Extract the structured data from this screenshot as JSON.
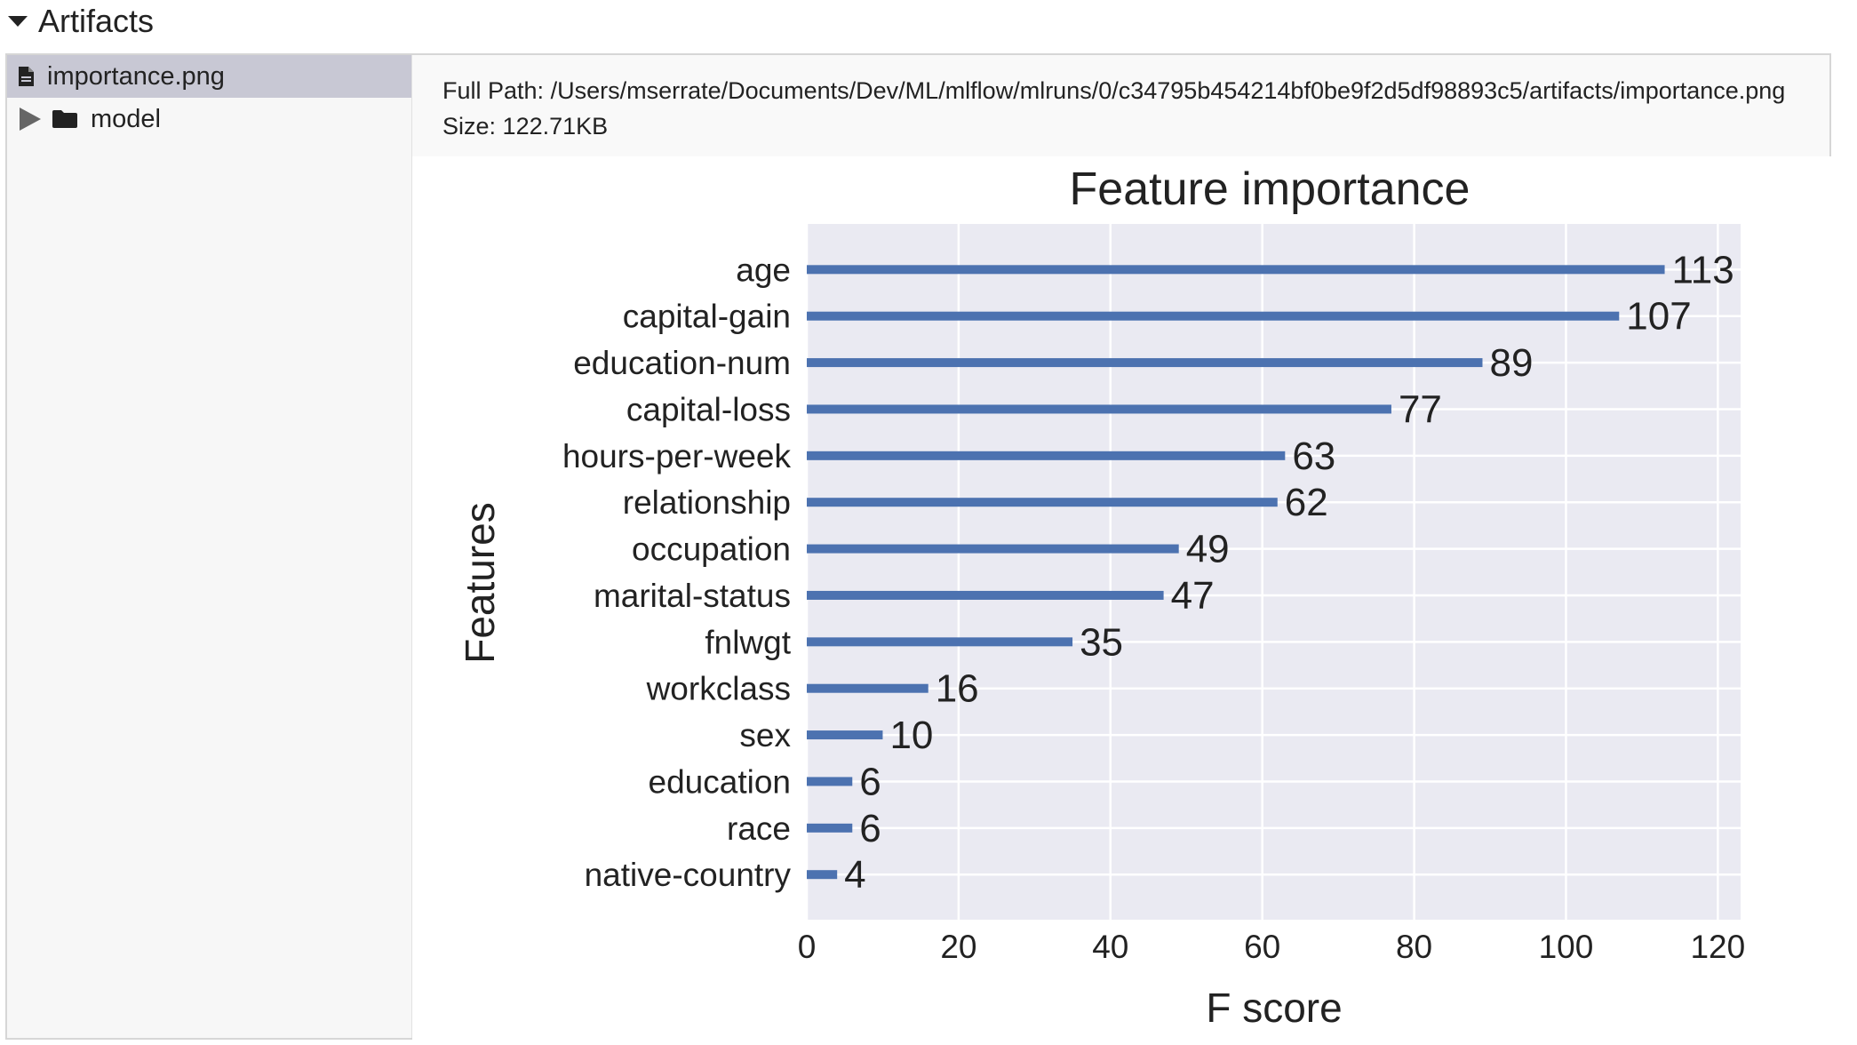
{
  "section": {
    "title": "Artifacts"
  },
  "tree": {
    "items": [
      {
        "label": "importance.png",
        "type": "file",
        "icon": "file-icon",
        "selected": true
      },
      {
        "label": "model",
        "type": "folder",
        "icon": "folder-icon",
        "selected": false
      }
    ]
  },
  "preview": {
    "full_path_label": "Full Path:",
    "full_path": "/Users/mserrate/Documents/Dev/ML/mlflow/mlruns/0/c34795b454214bf0be9f2d5df98893c5/artifacts/importance.png",
    "size_label": "Size:",
    "size": "122.71KB"
  },
  "chart_data": {
    "type": "bar",
    "orientation": "horizontal",
    "title": "Feature importance",
    "xlabel": "F score",
    "ylabel": "Features",
    "xlim": [
      0,
      123
    ],
    "xticks": [
      0,
      20,
      40,
      60,
      80,
      100,
      120
    ],
    "grid": true,
    "bar_color": "#4c72b0",
    "background_color": "#eaeaf2",
    "categories": [
      "age",
      "capital-gain",
      "education-num",
      "capital-loss",
      "hours-per-week",
      "relationship",
      "occupation",
      "marital-status",
      "fnlwgt",
      "workclass",
      "sex",
      "education",
      "race",
      "native-country"
    ],
    "values": [
      113,
      107,
      89,
      77,
      63,
      62,
      49,
      47,
      35,
      16,
      10,
      6,
      6,
      4
    ],
    "value_labels": [
      "113",
      "107",
      "89",
      "77",
      "63",
      "62",
      "49",
      "47",
      "35",
      "16",
      "10",
      "6",
      "6",
      "4"
    ]
  }
}
